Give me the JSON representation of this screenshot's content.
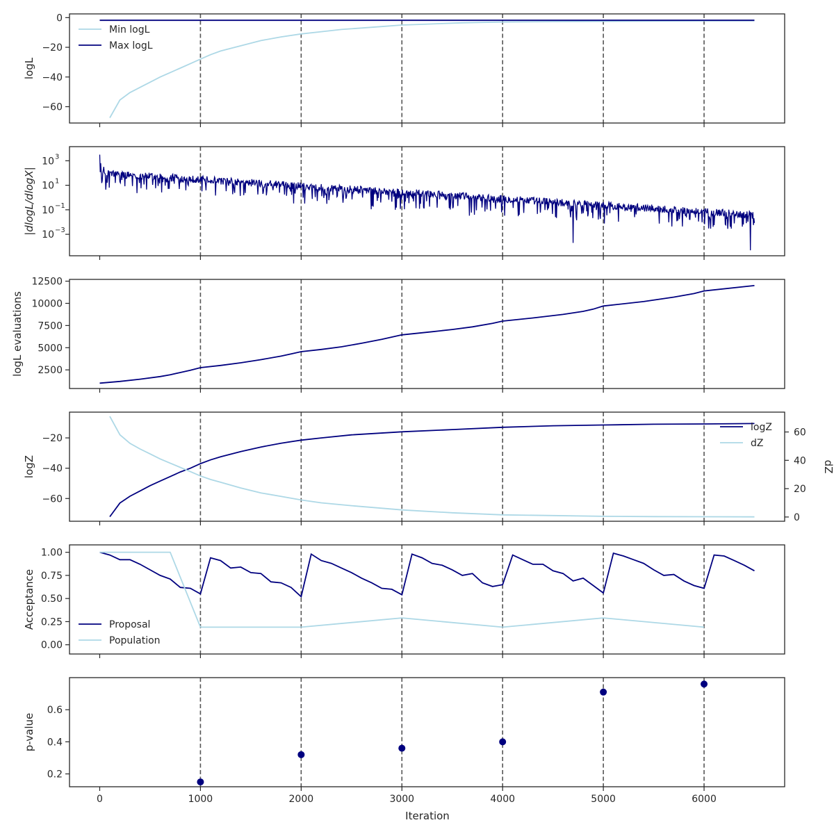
{
  "colors": {
    "dark": "#00007f",
    "light": "#add8e6",
    "vline": "#555555",
    "axis": "#262626"
  },
  "x_axis": {
    "label": "Iteration",
    "ticks": [
      0,
      1000,
      2000,
      3000,
      4000,
      5000,
      6000
    ],
    "range": [
      -300,
      6800
    ]
  },
  "vlines": [
    1000,
    2000,
    3000,
    4000,
    5000,
    6000
  ],
  "chart_data": [
    {
      "type": "line",
      "ylabel": "logL",
      "ylim": [
        -71,
        2.5
      ],
      "yticks": [
        0,
        -20,
        -40,
        -60
      ],
      "legend": {
        "placement": "upper-left",
        "entries": [
          "Min logL",
          "Max logL"
        ]
      },
      "series": [
        {
          "name": "Min logL",
          "color": "light",
          "x": [
            100,
            200,
            300,
            400,
            500,
            600,
            700,
            800,
            900,
            1000,
            1100,
            1200,
            1400,
            1600,
            1800,
            2000,
            2200,
            2400,
            2600,
            2800,
            3000,
            3200,
            3400,
            3600,
            3800,
            4000,
            4500,
            5000,
            5500,
            6000,
            6500
          ],
          "y": [
            -67.5,
            -55.5,
            -50.5,
            -47,
            -43.5,
            -40,
            -37,
            -34,
            -31,
            -28,
            -25,
            -22.5,
            -19,
            -15.5,
            -13,
            -11,
            -9.5,
            -8,
            -7,
            -6,
            -5,
            -4.5,
            -4,
            -3.5,
            -3.2,
            -3,
            -2.7,
            -2.5,
            -2.3,
            -2.2,
            -2.1
          ]
        },
        {
          "name": "Max logL",
          "color": "dark",
          "x": [
            0,
            6500
          ],
          "y": [
            -1.8,
            -1.8
          ]
        }
      ]
    },
    {
      "type": "line",
      "ylabel": "|dlogL/dlogX|",
      "yscale": "log",
      "ylim_log10": [
        -4.75,
        4.15
      ],
      "yticks": [
        3,
        1,
        -1,
        -3
      ],
      "ytick_labels": [
        "10",
        "10",
        "10",
        "10"
      ],
      "ytick_exponents": [
        "3",
        "1",
        "−1",
        "−3"
      ],
      "series": [
        {
          "name": "",
          "color": "dark",
          "kind": "noisy",
          "x": [
            0,
            6500
          ],
          "trend_log10": [
            1.9,
            -1.5
          ],
          "spread_up": 0.6,
          "spikes_log10": [
            [
              0,
              3.5
            ],
            [
              10,
              2.8
            ],
            [
              40,
              2.5
            ],
            [
              4700,
              -3.7
            ],
            [
              6460,
              -4.3
            ]
          ]
        }
      ]
    },
    {
      "type": "line",
      "ylabel": "logL evaluations",
      "ylim": [
        400,
        12700
      ],
      "yticks": [
        2500,
        5000,
        7500,
        10000,
        12500
      ],
      "series": [
        {
          "name": "",
          "color": "dark",
          "x": [
            0,
            200,
            400,
            600,
            700,
            800,
            900,
            1000,
            1200,
            1400,
            1600,
            1800,
            1900,
            2000,
            2200,
            2400,
            2600,
            2800,
            2900,
            3000,
            3300,
            3500,
            3700,
            3900,
            4000,
            4300,
            4600,
            4800,
            4900,
            5000,
            5400,
            5700,
            5900,
            6000,
            6500
          ],
          "y": [
            1000,
            1200,
            1450,
            1750,
            1950,
            2200,
            2450,
            2750,
            3000,
            3300,
            3650,
            4050,
            4300,
            4550,
            4800,
            5100,
            5500,
            5950,
            6200,
            6450,
            6800,
            7050,
            7350,
            7750,
            8000,
            8350,
            8750,
            9100,
            9350,
            9700,
            10200,
            10700,
            11100,
            11400,
            12000
          ]
        }
      ]
    },
    {
      "type": "line",
      "ylabel": "logZ",
      "ylim": [
        -75,
        -3
      ],
      "yticks": [
        -20,
        -40,
        -60
      ],
      "ylabel_right": "dZ",
      "ylim_right": [
        -3,
        74
      ],
      "yticks_right": [
        0,
        20,
        40,
        60
      ],
      "legend": {
        "placement": "upper-right",
        "entries": [
          "logZ",
          "dZ"
        ]
      },
      "series": [
        {
          "name": "logZ",
          "color": "dark",
          "axis": "left",
          "x": [
            100,
            200,
            300,
            400,
            500,
            600,
            700,
            800,
            900,
            1000,
            1100,
            1200,
            1400,
            1600,
            1800,
            2000,
            2200,
            2500,
            3000,
            3500,
            4000,
            4500,
            5000,
            5500,
            6000,
            6500
          ],
          "y": [
            -72,
            -63,
            -58.5,
            -55,
            -51.5,
            -48.5,
            -45.5,
            -42.5,
            -40,
            -37,
            -34.5,
            -32.5,
            -29,
            -26,
            -23.5,
            -21.5,
            -20,
            -18,
            -16,
            -14.5,
            -13,
            -12,
            -11.5,
            -11,
            -10.8,
            -10.5
          ]
        },
        {
          "name": "dZ",
          "color": "light",
          "axis": "right",
          "x": [
            100,
            200,
            300,
            400,
            500,
            600,
            700,
            800,
            900,
            1000,
            1100,
            1200,
            1400,
            1600,
            1800,
            2000,
            2200,
            2500,
            3000,
            3500,
            4000,
            4500,
            5000,
            5500,
            6000,
            6500
          ],
          "y": [
            71,
            58,
            52,
            48,
            44.5,
            41,
            38,
            35,
            32,
            29,
            26.5,
            24.5,
            20.5,
            17,
            14.5,
            12,
            10,
            8,
            5,
            3,
            1.5,
            1,
            0.5,
            0.3,
            0.2,
            0.1
          ]
        }
      ]
    },
    {
      "type": "line",
      "ylabel": "Acceptance",
      "ylim": [
        -0.1,
        1.08
      ],
      "yticks": [
        0.0,
        0.25,
        0.5,
        0.75,
        1.0
      ],
      "ytick_labels": [
        "0.00",
        "0.25",
        "0.50",
        "0.75",
        "1.00"
      ],
      "legend": {
        "placement": "lower-left",
        "entries": [
          "Proposal",
          "Population"
        ]
      },
      "series": [
        {
          "name": "Proposal",
          "color": "dark",
          "x": [
            0,
            100,
            200,
            300,
            400,
            500,
            600,
            700,
            800,
            900,
            1000,
            1100,
            1200,
            1300,
            1400,
            1500,
            1600,
            1700,
            1800,
            1900,
            2000,
            2100,
            2200,
            2300,
            2400,
            2500,
            2600,
            2700,
            2800,
            2900,
            3000,
            3100,
            3200,
            3300,
            3400,
            3500,
            3600,
            3700,
            3800,
            3900,
            4000,
            4100,
            4200,
            4300,
            4400,
            4500,
            4600,
            4700,
            4800,
            4900,
            5000,
            5100,
            5200,
            5300,
            5400,
            5500,
            5600,
            5700,
            5800,
            5900,
            6000,
            6100,
            6200,
            6300,
            6400,
            6500
          ],
          "y": [
            1.0,
            0.97,
            0.92,
            0.92,
            0.87,
            0.81,
            0.75,
            0.71,
            0.62,
            0.61,
            0.55,
            0.94,
            0.91,
            0.83,
            0.84,
            0.78,
            0.77,
            0.68,
            0.67,
            0.62,
            0.52,
            0.98,
            0.91,
            0.88,
            0.83,
            0.78,
            0.72,
            0.67,
            0.61,
            0.6,
            0.54,
            0.98,
            0.94,
            0.88,
            0.86,
            0.81,
            0.75,
            0.77,
            0.67,
            0.63,
            0.65,
            0.97,
            0.92,
            0.87,
            0.87,
            0.8,
            0.77,
            0.69,
            0.72,
            0.64,
            0.56,
            0.99,
            0.96,
            0.92,
            0.88,
            0.81,
            0.75,
            0.76,
            0.69,
            0.64,
            0.61,
            0.97,
            0.96,
            0.91,
            0.86,
            0.8
          ]
        },
        {
          "name": "Population",
          "color": "light",
          "x": [
            0,
            700,
            1000,
            2000,
            3000,
            4000,
            5000,
            6000
          ],
          "y": [
            1.0,
            1.0,
            0.19,
            0.19,
            0.29,
            0.19,
            0.29,
            0.19
          ]
        }
      ]
    },
    {
      "type": "scatter",
      "ylabel": "p-value",
      "ylim": [
        0.12,
        0.8
      ],
      "yticks": [
        0.2,
        0.4,
        0.6
      ],
      "ytick_labels": [
        "0.2",
        "0.4",
        "0.6"
      ],
      "series": [
        {
          "name": "",
          "color": "dark",
          "x": [
            1000,
            2000,
            3000,
            4000,
            5000,
            6000
          ],
          "y": [
            0.15,
            0.32,
            0.36,
            0.4,
            0.71,
            0.76
          ]
        }
      ]
    }
  ]
}
